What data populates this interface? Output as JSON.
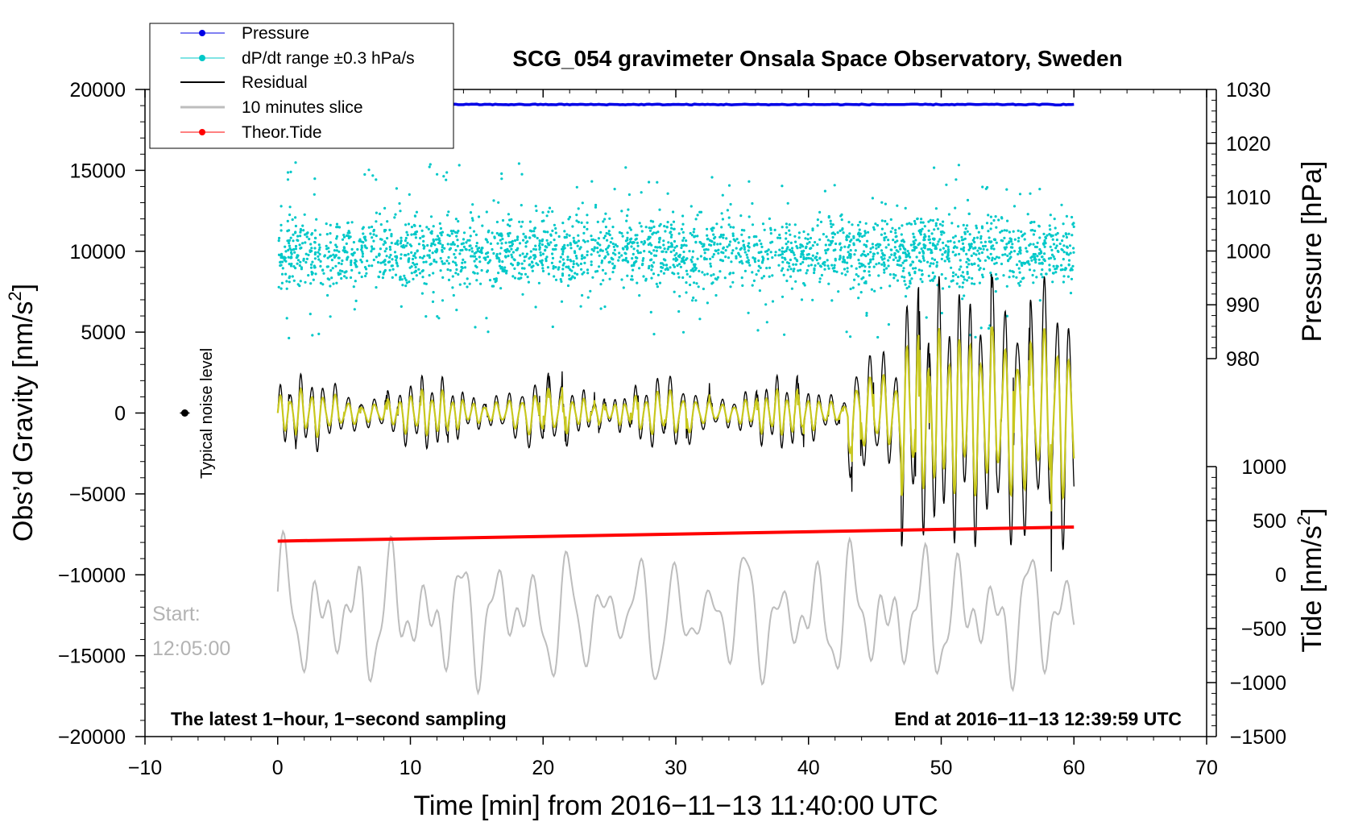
{
  "chart_data": {
    "type": "line",
    "title": "SCG_054 gravimeter Onsala Space Observatory, Sweden",
    "xlabel": "Time [min] from 2016−11−13 11:40:00 UTC",
    "ylabel_left": "Obs'd Gravity [nm/s²]",
    "ylabel_left_base": "Obs’d Gravity [nm/s",
    "ylabel_left_sup": "2",
    "ylabel_left_end": "]",
    "ylabel_right_top": "Pressure [hPa]",
    "ylabel_right_bottom": "Tide [nm/s²]",
    "ylabel_right_bottom_base": "Tide [nm/s",
    "ylabel_right_bottom_sup": "2",
    "ylabel_right_bottom_end": "]",
    "xlim": [
      -10,
      70
    ],
    "ylim_left": [
      -20000,
      20000
    ],
    "ylim_pressure": [
      980,
      1030
    ],
    "ylim_tide": [
      -1500,
      1000
    ],
    "x_ticks": [
      "−10",
      "0",
      "10",
      "20",
      "30",
      "40",
      "50",
      "60",
      "70"
    ],
    "x_tick_values": [
      -10,
      0,
      10,
      20,
      30,
      40,
      50,
      60,
      70
    ],
    "y_left_ticks": [
      "20000",
      "15000",
      "10000",
      "5000",
      "0",
      "−5000",
      "−10000",
      "−15000",
      "−20000"
    ],
    "y_left_tick_values": [
      20000,
      15000,
      10000,
      5000,
      0,
      -5000,
      -10000,
      -15000,
      -20000
    ],
    "y_pressure_ticks": [
      "1030",
      "1020",
      "1010",
      "1000",
      "990",
      "980"
    ],
    "y_pressure_tick_values": [
      1030,
      1020,
      1010,
      1000,
      990,
      980
    ],
    "y_tide_ticks": [
      "1000",
      "500",
      "0",
      "−500",
      "−1000",
      "−1500"
    ],
    "y_tide_tick_values": [
      1000,
      500,
      0,
      -500,
      -1000,
      -1500
    ],
    "legend": [
      {
        "label": "Pressure",
        "color": "#0000e6",
        "marker": true
      },
      {
        "label": "dP/dt range ±0.3 hPa/s",
        "color": "#00c8c8",
        "marker": true
      },
      {
        "label": "Residual",
        "color": "#000000",
        "marker": false
      },
      {
        "label": "10 minutes slice",
        "color": "#bdbdbd",
        "marker": false
      },
      {
        "label": "Theor.Tide",
        "color": "#ff0000",
        "marker": true
      }
    ],
    "series": [
      {
        "name": "Pressure",
        "axis": "pressure",
        "x_range": [
          0,
          60
        ],
        "approx_value_hPa": 1027.2,
        "color": "#0000e6"
      },
      {
        "name": "Theor.Tide",
        "axis": "tide",
        "x": [
          0,
          60
        ],
        "values": [
          310,
          440
        ],
        "color": "#ff0000"
      },
      {
        "name": "dP/dt range ±0.3 hPa/s",
        "axis": "left",
        "x_range": [
          0,
          60
        ],
        "center": 10000,
        "spread": 2000,
        "color": "#00c8c8"
      },
      {
        "name": "Residual",
        "axis": "left",
        "x_range": [
          0,
          60
        ],
        "baseline": 0,
        "amplitude_early": 2500,
        "amplitude_late": 8500,
        "color": "#000000"
      },
      {
        "name": "10 minutes slice",
        "axis": "left",
        "x_range": [
          0,
          60
        ],
        "center": -12500,
        "amplitude": 4000,
        "color": "#bdbdbd"
      }
    ],
    "noise_marker": {
      "x": -7,
      "y": 0,
      "label": "Typical noise level"
    },
    "annotations": {
      "start_label": "Start:",
      "start_time": "12:05:00",
      "footer_left": "The latest 1−hour, 1−second sampling",
      "footer_right": "End at 2016−11−13 12:39:59 UTC"
    },
    "colors": {
      "pressure": "#0000e6",
      "dpdt": "#00c8c8",
      "residual": "#000000",
      "filtered": "#c8c81e",
      "slice": "#bdbdbd",
      "tide": "#ff0000"
    }
  }
}
